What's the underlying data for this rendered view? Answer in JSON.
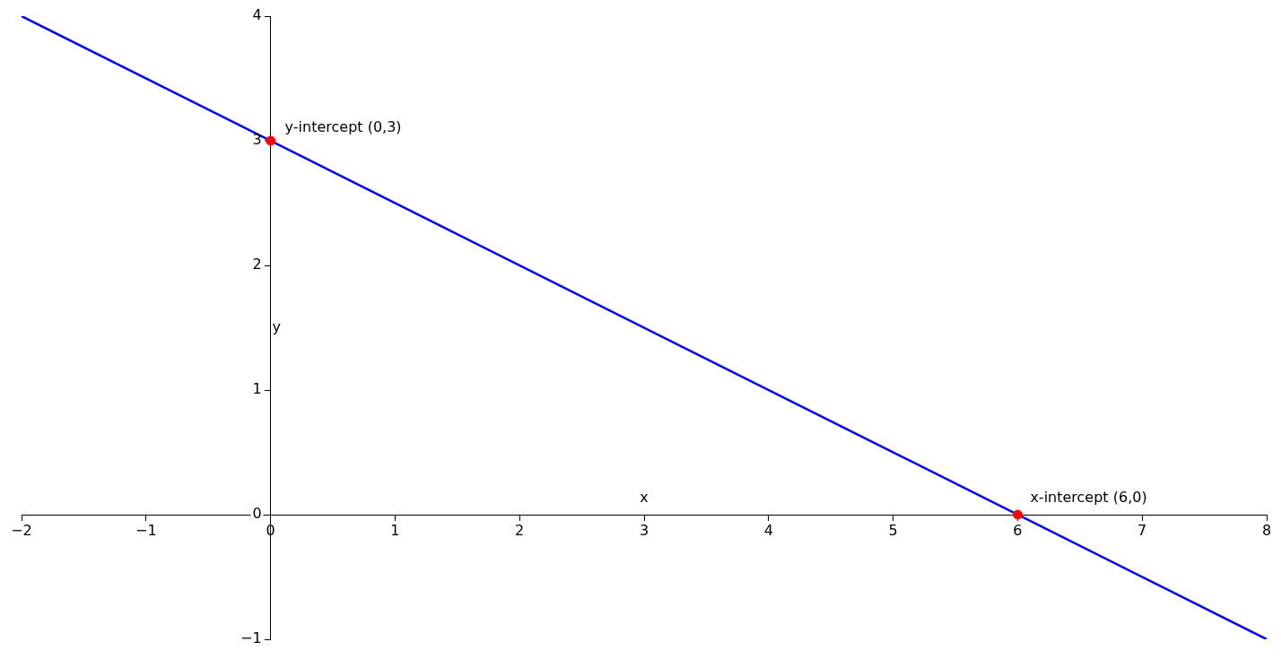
{
  "chart_data": {
    "type": "line",
    "xlabel": "x",
    "ylabel": "y",
    "xlim": [
      -2,
      8
    ],
    "ylim": [
      -1,
      4
    ],
    "xticks": [
      -2,
      -1,
      0,
      1,
      2,
      3,
      4,
      5,
      6,
      7,
      8
    ],
    "yticks": [
      -1,
      0,
      1,
      2,
      3,
      4
    ],
    "grid": false,
    "legend": false,
    "series": [
      {
        "x": [
          -2,
          8
        ],
        "values": [
          4,
          -1
        ],
        "color": "#0000ff",
        "marker": "none",
        "line_style": "solid"
      },
      {
        "type": "scatter",
        "x": [
          0,
          6
        ],
        "values": [
          3,
          0
        ],
        "color": "#ff0000",
        "marker": "circle"
      }
    ],
    "annotations": [
      {
        "text": "y-intercept (0,3)",
        "x": 0,
        "y": 3
      },
      {
        "text": "x-intercept (6,0)",
        "x": 6,
        "y": 0
      }
    ]
  }
}
